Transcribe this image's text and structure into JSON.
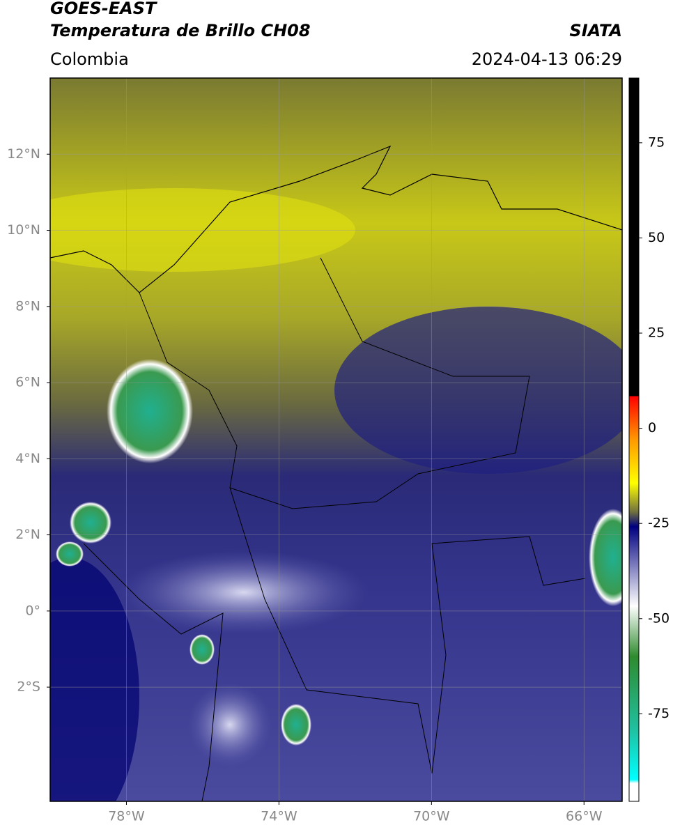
{
  "header": {
    "source": "GOES-EAST",
    "title": "Temperatura de Brillo CH08",
    "region": "Colombia",
    "agency": "SIATA",
    "datetime": "2024-04-13 06:29"
  },
  "map": {
    "lonlim": [
      -80,
      -65
    ],
    "latlim": [
      -5,
      14
    ],
    "xticks": [
      {
        "value": -78,
        "label": "78°W"
      },
      {
        "value": -74,
        "label": "74°W"
      },
      {
        "value": -70,
        "label": "70°W"
      },
      {
        "value": -66,
        "label": "66°W"
      }
    ],
    "yticks": [
      {
        "value": 12,
        "label": "12°N"
      },
      {
        "value": 10,
        "label": "10°N"
      },
      {
        "value": 8,
        "label": "8°N"
      },
      {
        "value": 6,
        "label": "6°N"
      },
      {
        "value": 4,
        "label": "4°N"
      },
      {
        "value": 2,
        "label": "2°N"
      },
      {
        "value": 0,
        "label": "0°"
      },
      {
        "value": -2,
        "label": "2°S"
      }
    ],
    "grid": true
  },
  "colorbar": {
    "lim": [
      -98,
      92
    ],
    "ticks": [
      75,
      50,
      25,
      0,
      -25,
      -50,
      -75
    ]
  }
}
